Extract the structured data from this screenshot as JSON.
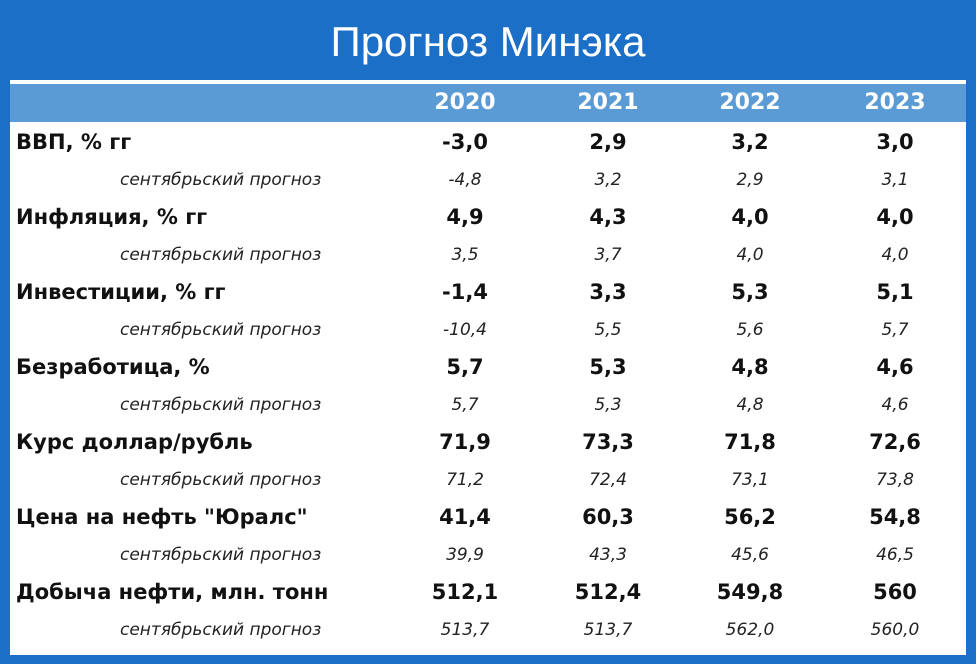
{
  "header": {
    "title": "Прогноз Минэка"
  },
  "table": {
    "columns": [
      "2020",
      "2021",
      "2022",
      "2023"
    ],
    "rows": [
      {
        "label": "ВВП, % гг",
        "values": [
          "-3,0",
          "2,9",
          "3,2",
          "3,0"
        ]
      },
      {
        "label": "сентябрьский прогноз",
        "values": [
          "-4,8",
          "3,2",
          "2,9",
          "3,1"
        ]
      },
      {
        "label": "Инфляция, % гг",
        "values": [
          "4,9",
          "4,3",
          "4,0",
          "4,0"
        ]
      },
      {
        "label": "сентябрьский прогноз",
        "values": [
          "3,5",
          "3,7",
          "4,0",
          "4,0"
        ]
      },
      {
        "label": "Инвестиции, % гг",
        "values": [
          "-1,4",
          "3,3",
          "5,3",
          "5,1"
        ]
      },
      {
        "label": "сентябрьский прогноз",
        "values": [
          "-10,4",
          "5,5",
          "5,6",
          "5,7"
        ]
      },
      {
        "label": "Безработица, %",
        "values": [
          "5,7",
          "5,3",
          "4,8",
          "4,6"
        ]
      },
      {
        "label": "сентябрьский прогноз",
        "values": [
          "5,7",
          "5,3",
          "4,8",
          "4,6"
        ]
      },
      {
        "label": "Курс доллар/рубль",
        "values": [
          "71,9",
          "73,3",
          "71,8",
          "72,6"
        ]
      },
      {
        "label": "сентябрьский прогноз",
        "values": [
          "71,2",
          "72,4",
          "73,1",
          "73,8"
        ]
      },
      {
        "label": "Цена на нефть \"Юралс\"",
        "values": [
          "41,4",
          "60,3",
          "56,2",
          "54,8"
        ]
      },
      {
        "label": "сентябрьский прогноз",
        "values": [
          "39,9",
          "43,3",
          "45,6",
          "46,5"
        ]
      },
      {
        "label": "Добыча нефти, млн. тонн",
        "values": [
          "512,1",
          "512,4",
          "549,8",
          "560"
        ]
      },
      {
        "label": "сентябрьский прогноз",
        "values": [
          "513,7",
          "513,7",
          "562,0",
          "560,0"
        ]
      }
    ]
  }
}
